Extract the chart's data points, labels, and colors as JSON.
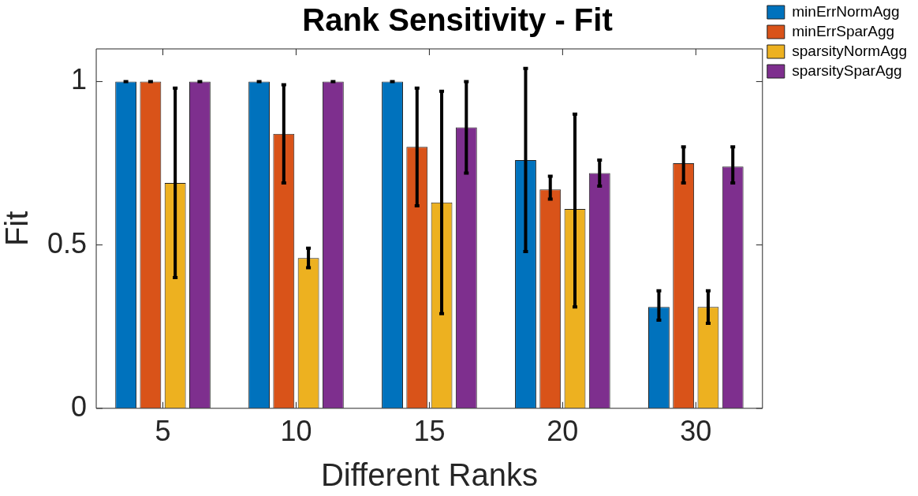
{
  "chart_data": {
    "type": "bar",
    "title": "Rank Sensitivity - Fit",
    "xlabel": "Different Ranks",
    "ylabel": "Fit",
    "categories": [
      "5",
      "10",
      "15",
      "20",
      "30"
    ],
    "ylim": [
      0,
      1.1
    ],
    "yticks": [
      0,
      0.5,
      1
    ],
    "grid": false,
    "legend": "top right",
    "series": [
      {
        "name": "minErrNormAgg",
        "color": "#0072bd",
        "values": [
          1,
          1,
          1,
          0.76,
          0.31
        ],
        "errors": [
          [
            1,
            1
          ],
          [
            1,
            1
          ],
          [
            1,
            1
          ],
          [
            0.48,
            1.04
          ],
          [
            0.27,
            0.36
          ]
        ]
      },
      {
        "name": "minErrSparAgg",
        "color": "#d95319",
        "values": [
          1,
          0.84,
          0.8,
          0.67,
          0.75
        ],
        "errors": [
          [
            1,
            1
          ],
          [
            0.69,
            0.99
          ],
          [
            0.62,
            0.98
          ],
          [
            0.64,
            0.71
          ],
          [
            0.69,
            0.8
          ]
        ]
      },
      {
        "name": "sparsityNormAgg",
        "color": "#edb120",
        "values": [
          0.69,
          0.46,
          0.63,
          0.61,
          0.31
        ],
        "errors": [
          [
            0.4,
            0.98
          ],
          [
            0.43,
            0.49
          ],
          [
            0.29,
            0.97
          ],
          [
            0.31,
            0.9
          ],
          [
            0.26,
            0.36
          ]
        ]
      },
      {
        "name": "sparsitySparAgg",
        "color": "#7e2f8e",
        "values": [
          1,
          1,
          0.86,
          0.72,
          0.74
        ],
        "errors": [
          [
            1,
            1
          ],
          [
            1,
            1
          ],
          [
            0.72,
            1
          ],
          [
            0.68,
            0.76
          ],
          [
            0.69,
            0.8
          ]
        ]
      }
    ]
  }
}
